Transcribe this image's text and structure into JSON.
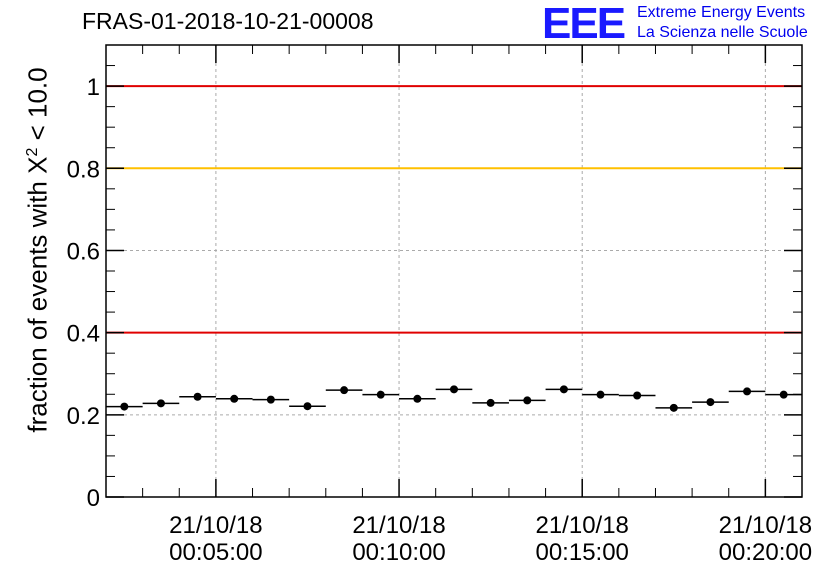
{
  "title": "FRAS-01-2018-10-21-00008",
  "logo": {
    "mark": "EEE",
    "line1": "Extreme Energy Events",
    "line2": "La Scienza nelle Scuole"
  },
  "chart_data": {
    "type": "scatter",
    "title": "FRAS-01-2018-10-21-00008",
    "ylabel_prefix": "fraction of events with ",
    "ylabel_symbol": "X",
    "ylabel_power": "2",
    "ylabel_suffix": " < 10.0",
    "ylim": [
      0,
      1.1
    ],
    "y_ticks": [
      "0",
      "0.2",
      "0.4",
      "0.6",
      "0.8",
      "1"
    ],
    "x_tick_labels": [
      [
        "21/10/18",
        "00:05:00"
      ],
      [
        "21/10/18",
        "00:10:00"
      ],
      [
        "21/10/18",
        "00:15:00"
      ],
      [
        "21/10/18",
        "00:20:00"
      ]
    ],
    "grid": true,
    "reference_lines": [
      {
        "y": 1.0,
        "color": "#e00000"
      },
      {
        "y": 0.8,
        "color": "#ffc000"
      },
      {
        "y": 0.4,
        "color": "#e00000"
      }
    ],
    "points_y": [
      0.22,
      0.228,
      0.244,
      0.239,
      0.237,
      0.221,
      0.26,
      0.249,
      0.239,
      0.262,
      0.229,
      0.235,
      0.262,
      0.249,
      0.247,
      0.217,
      0.231,
      0.257,
      0.249
    ],
    "x_range_minutes": [
      2.0,
      21.0
    ],
    "x_tick_minutes": [
      5,
      10,
      15,
      20
    ],
    "point_start_minute": 2.5,
    "point_step_minutes": 1.0,
    "marker_color": "#000000"
  }
}
